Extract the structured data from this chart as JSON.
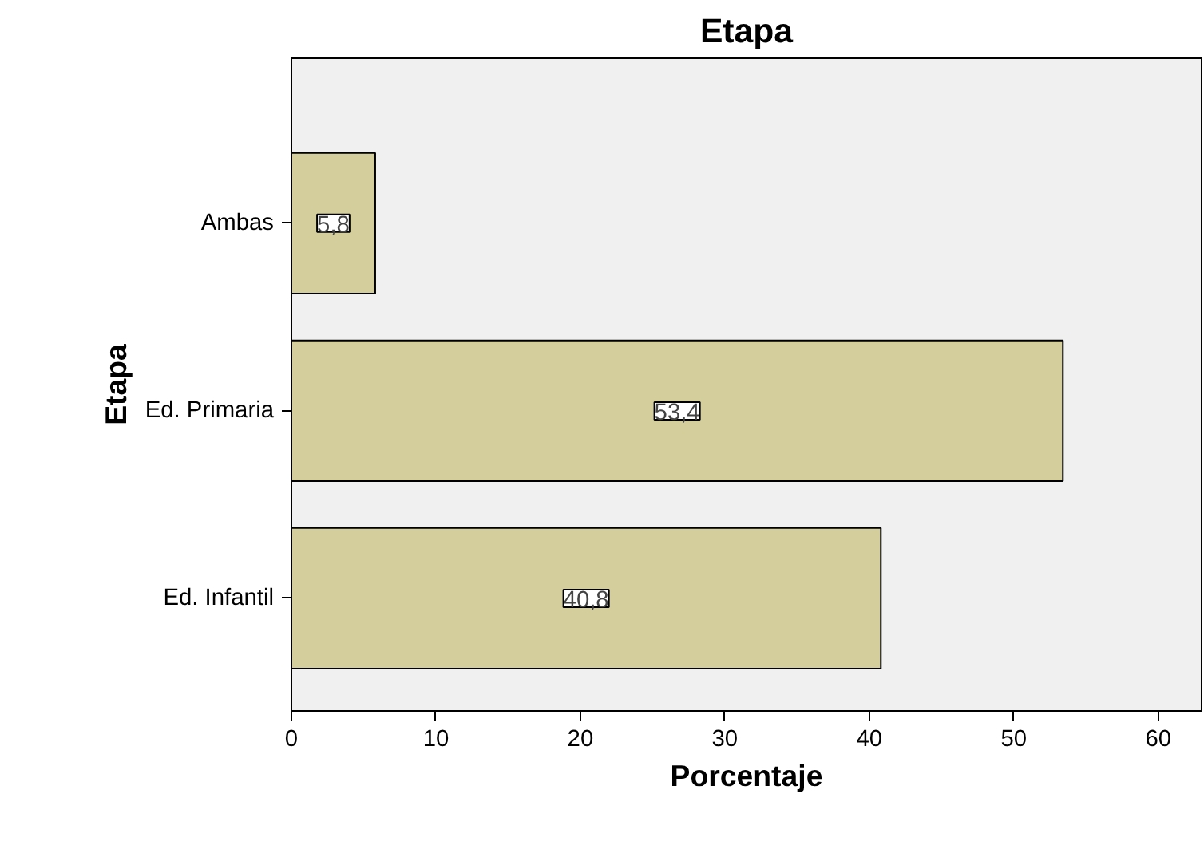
{
  "chart_data": {
    "type": "bar",
    "orientation": "horizontal",
    "title": "Etapa",
    "xlabel": "Porcentaje",
    "ylabel": "Etapa",
    "categories": [
      "Ambas",
      "Ed. Primaria",
      "Ed. Infantil"
    ],
    "values": [
      5.8,
      53.4,
      40.8
    ],
    "value_labels": [
      "5,8",
      "53,4",
      "40,8"
    ],
    "color": "#d3ce9c",
    "xlim": [
      0,
      63
    ],
    "xticks": [
      0,
      10,
      20,
      30,
      40,
      50,
      60
    ],
    "grid": false
  }
}
